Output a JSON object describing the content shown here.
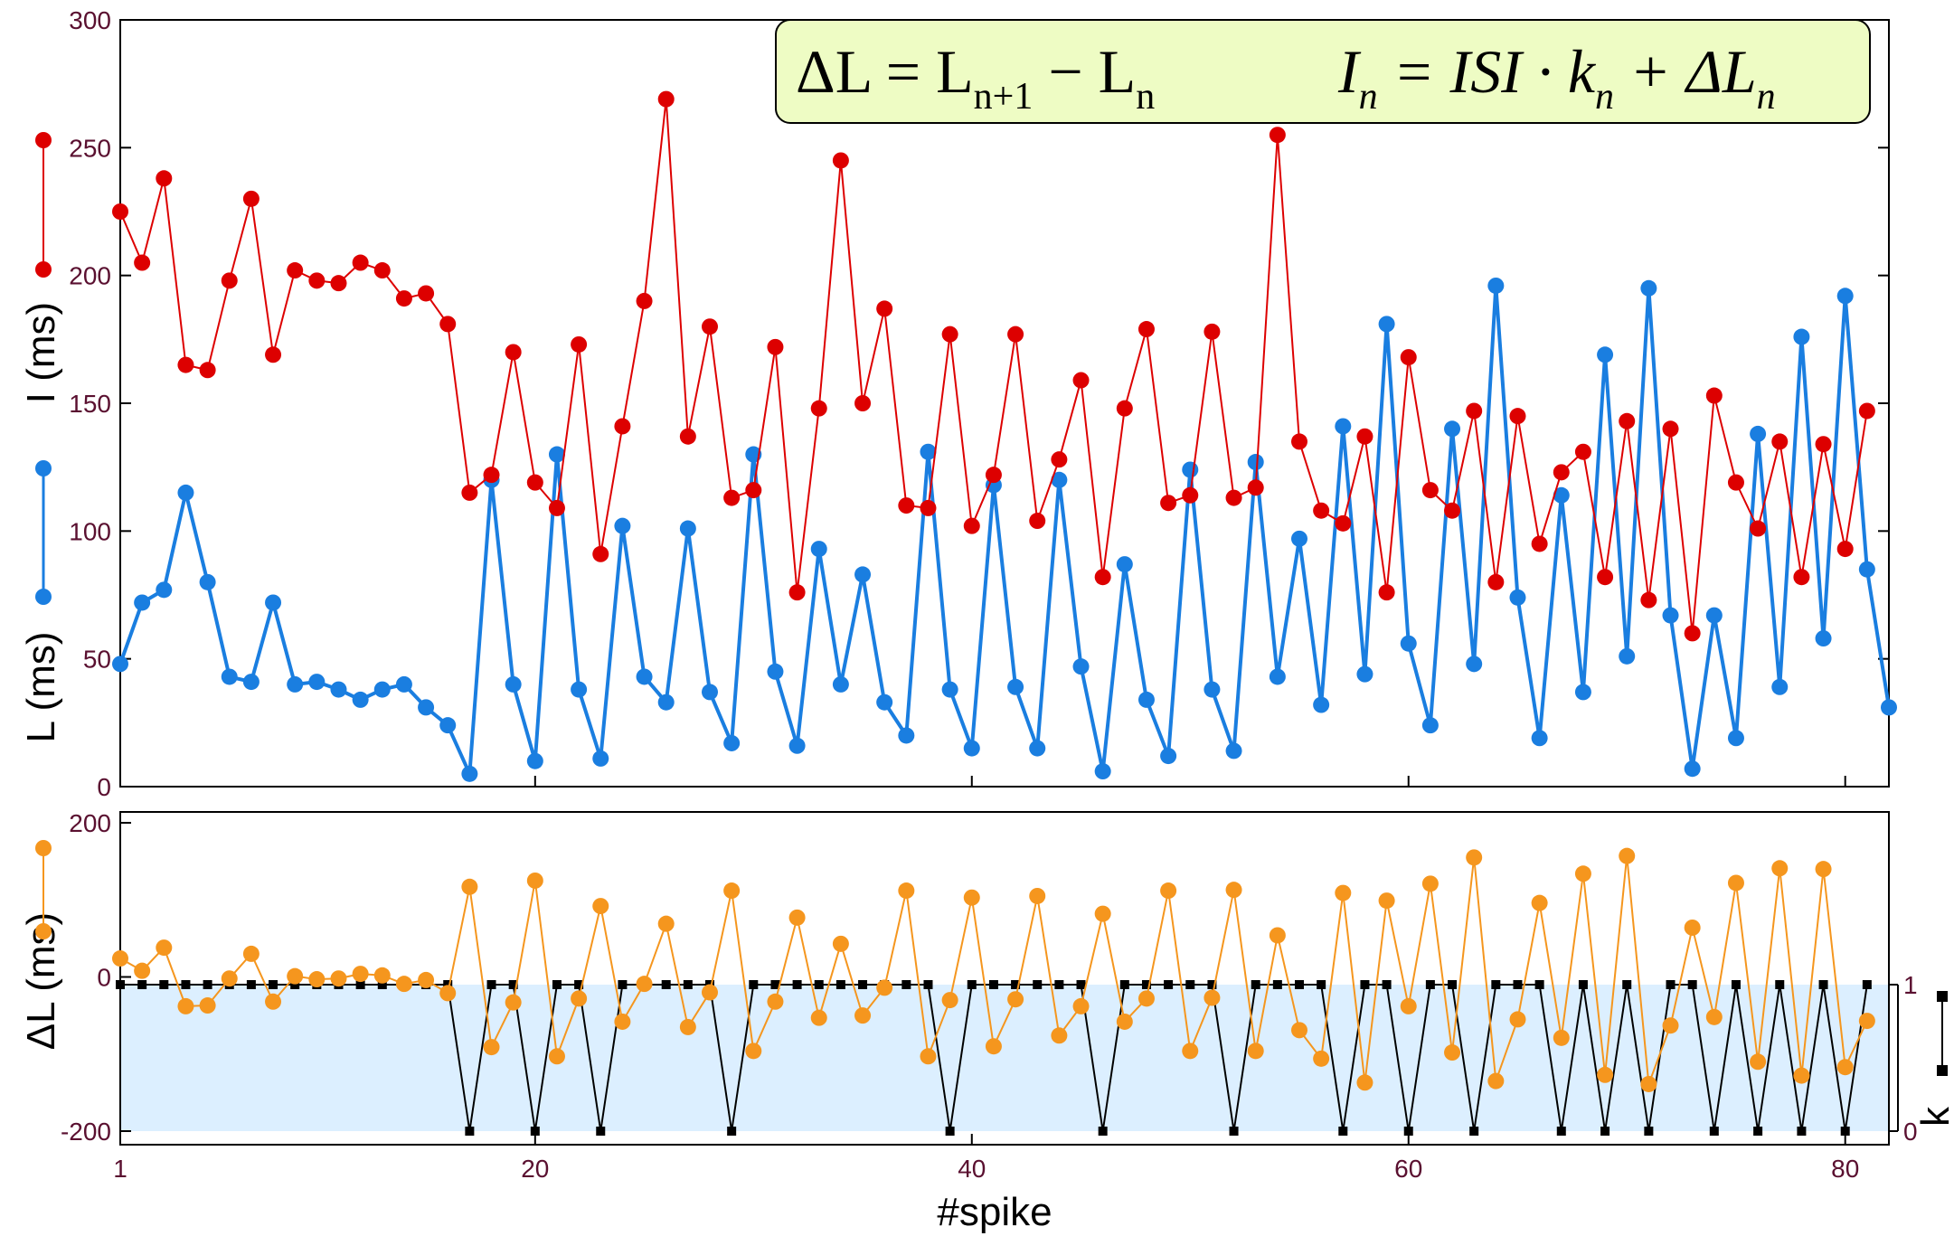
{
  "chart_data": [
    {
      "type": "line",
      "xlabel": "#spike",
      "ylabels": [
        "I (ms)",
        "L (ms)"
      ],
      "ylim": [
        0,
        300
      ],
      "xlim": [
        1,
        82
      ],
      "yticks": [
        "0",
        "50",
        "100",
        "150",
        "200",
        "250",
        "300"
      ],
      "formula": {
        "left_lhs": "ΔL",
        "left_rhs": "= L",
        "left_sub1": "n+1",
        "left_minus": "− L",
        "left_sub2": "n",
        "right_lhs": "I",
        "right_sub1": "n",
        "right_eq": "= ISI · k",
        "right_sub2": "n",
        "right_plus": "+ ΔL",
        "right_sub3": "n"
      },
      "series": [
        {
          "color": "#dd0000",
          "x": [
            1,
            2,
            3,
            4,
            5,
            6,
            7,
            8,
            9,
            10,
            11,
            12,
            13,
            14,
            15,
            16,
            17,
            18,
            19,
            20,
            21,
            22,
            23,
            24,
            25,
            26,
            27,
            28,
            29,
            30,
            31,
            32,
            33,
            34,
            35,
            36,
            37,
            38,
            39,
            40,
            41,
            42,
            43,
            44,
            45,
            46,
            47,
            48,
            49,
            50,
            51,
            52,
            53,
            54,
            55,
            56,
            57,
            58,
            59,
            60,
            61,
            62,
            63,
            64,
            65,
            66,
            67,
            68,
            69,
            70,
            71,
            72,
            73,
            74,
            75,
            76,
            77,
            78,
            79,
            80,
            81
          ],
          "values": [
            225,
            205,
            238,
            165,
            163,
            198,
            230,
            169,
            202,
            198,
            197,
            205,
            202,
            191,
            193,
            181,
            115,
            122,
            170,
            119,
            109,
            173,
            91,
            141,
            190,
            269,
            137,
            180,
            113,
            116,
            172,
            76,
            148,
            245,
            150,
            187,
            110,
            109,
            177,
            102,
            122,
            177,
            104,
            128,
            159,
            82,
            148,
            179,
            111,
            114,
            178,
            113,
            117,
            255,
            135,
            108,
            103,
            137,
            76,
            168,
            116,
            108,
            147,
            80,
            145,
            95,
            123,
            131,
            82,
            143,
            73,
            140,
            60,
            153,
            119,
            101,
            135,
            82,
            134,
            93,
            147
          ]
        },
        {
          "color": "#1a7ee0",
          "x": [
            1,
            2,
            3,
            4,
            5,
            6,
            7,
            8,
            9,
            10,
            11,
            12,
            13,
            14,
            15,
            16,
            17,
            18,
            19,
            20,
            21,
            22,
            23,
            24,
            25,
            26,
            27,
            28,
            29,
            30,
            31,
            32,
            33,
            34,
            35,
            36,
            37,
            38,
            39,
            40,
            41,
            42,
            43,
            44,
            45,
            46,
            47,
            48,
            49,
            50,
            51,
            52,
            53,
            54,
            55,
            56,
            57,
            58,
            59,
            60,
            61,
            62,
            63,
            64,
            65,
            66,
            67,
            68,
            69,
            70,
            71,
            72,
            73,
            74,
            75,
            76,
            77,
            78,
            79,
            80,
            81,
            82
          ],
          "values": [
            48,
            72,
            77,
            115,
            80,
            43,
            41,
            72,
            40,
            41,
            38,
            34,
            38,
            40,
            31,
            24,
            5,
            120,
            40,
            10,
            130,
            38,
            11,
            102,
            43,
            33,
            101,
            37,
            17,
            130,
            45,
            16,
            93,
            40,
            83,
            33,
            20,
            131,
            38,
            15,
            118,
            39,
            15,
            120,
            47,
            6,
            87,
            34,
            12,
            124,
            38,
            14,
            127,
            43,
            97,
            32,
            141,
            44,
            181,
            56,
            24,
            140,
            48,
            196,
            74,
            19,
            114,
            37,
            169,
            51,
            195,
            67,
            7,
            67,
            19,
            138,
            39,
            176,
            58,
            192,
            85,
            31
          ]
        }
      ]
    },
    {
      "type": "line",
      "xlabel": "#spike",
      "ylabel": "ΔL (ms)",
      "ylim": [
        -200,
        200
      ],
      "yticks": [
        "-200",
        "0",
        "200"
      ],
      "xticks": [
        "1",
        "20",
        "40",
        "60",
        "80"
      ],
      "y2label": "k",
      "y2lim": [
        0,
        1
      ],
      "y2ticks": [
        "0",
        "1"
      ],
      "series": [
        {
          "color": "#f5961e",
          "axis": "left",
          "x": [
            1,
            2,
            3,
            4,
            5,
            6,
            7,
            8,
            9,
            10,
            11,
            12,
            13,
            14,
            15,
            16,
            17,
            18,
            19,
            20,
            21,
            22,
            23,
            24,
            25,
            26,
            27,
            28,
            29,
            30,
            31,
            32,
            33,
            34,
            35,
            36,
            37,
            38,
            39,
            40,
            41,
            42,
            43,
            44,
            45,
            46,
            47,
            48,
            49,
            50,
            51,
            52,
            53,
            54,
            55,
            56,
            57,
            58,
            59,
            60,
            61,
            62,
            63,
            64,
            65,
            66,
            67,
            68,
            69,
            70,
            71,
            72,
            73,
            74,
            75,
            76,
            77,
            78,
            79,
            80,
            81
          ],
          "values": [
            24,
            8,
            38,
            -38,
            -37,
            -2,
            30,
            -32,
            1,
            -3,
            -2,
            4,
            2,
            -9,
            -4,
            -21,
            117,
            -91,
            -33,
            125,
            -103,
            -28,
            92,
            -58,
            -9,
            69,
            -65,
            -20,
            112,
            -96,
            -32,
            77,
            -53,
            43,
            -50,
            -14,
            112,
            -103,
            -30,
            103,
            -90,
            -29,
            105,
            -76,
            -38,
            82,
            -58,
            -28,
            112,
            -96,
            -27,
            113,
            -96,
            54,
            -69,
            -106,
            109,
            -137,
            99,
            -38,
            121,
            -98,
            155,
            -135,
            -55,
            96,
            -79,
            134,
            -127,
            157,
            -139,
            -63,
            64,
            -52,
            122,
            -110,
            141,
            -128,
            140,
            -117,
            -57
          ]
        },
        {
          "color": "#000000",
          "axis": "right",
          "x": [
            1,
            2,
            3,
            4,
            5,
            6,
            7,
            8,
            9,
            10,
            11,
            12,
            13,
            14,
            15,
            16,
            17,
            18,
            19,
            20,
            21,
            22,
            23,
            24,
            25,
            26,
            27,
            28,
            29,
            30,
            31,
            32,
            33,
            34,
            35,
            36,
            37,
            38,
            39,
            40,
            41,
            42,
            43,
            44,
            45,
            46,
            47,
            48,
            49,
            50,
            51,
            52,
            53,
            54,
            55,
            56,
            57,
            58,
            59,
            60,
            61,
            62,
            63,
            64,
            65,
            66,
            67,
            68,
            69,
            70,
            71,
            72,
            73,
            74,
            75,
            76,
            77,
            78,
            79,
            80,
            81
          ],
          "values": [
            1,
            1,
            1,
            1,
            1,
            1,
            1,
            1,
            1,
            1,
            1,
            1,
            1,
            1,
            1,
            1,
            0,
            1,
            1,
            0,
            1,
            1,
            0,
            1,
            1,
            1,
            1,
            1,
            0,
            1,
            1,
            1,
            1,
            1,
            1,
            1,
            1,
            1,
            0,
            1,
            1,
            1,
            1,
            1,
            1,
            0,
            1,
            1,
            1,
            1,
            1,
            0,
            1,
            1,
            1,
            1,
            0,
            1,
            1,
            0,
            1,
            1,
            0,
            1,
            1,
            1,
            0,
            1,
            0,
            1,
            0,
            1,
            1,
            0,
            1,
            0,
            1,
            0,
            1,
            0,
            1
          ]
        }
      ]
    }
  ]
}
